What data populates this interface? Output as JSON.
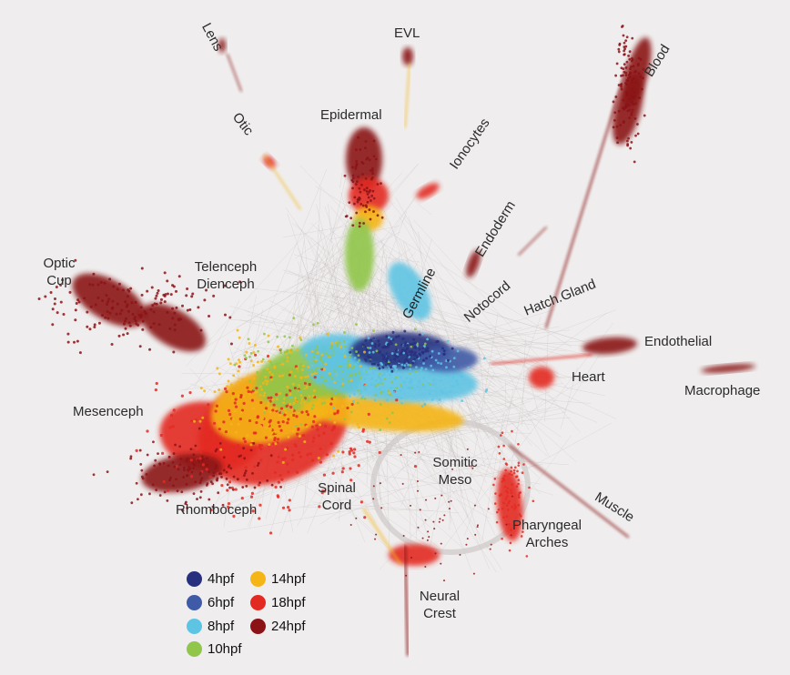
{
  "labels": {
    "lens": "Lens",
    "evl": "EVL",
    "blood": "Blood",
    "otic": "Otic",
    "epidermal": "Epidermal",
    "ionocytes": "Ionocytes",
    "endoderm": "Endoderm",
    "optic_cup_1": "Optic",
    "optic_cup_2": "Cup",
    "telenceph": "Telenceph",
    "dienceph": "Dienceph",
    "germline": "Germline",
    "notocord": "Notocord",
    "hatch_gland": "Hatch.Gland",
    "endothelial": "Endothelial",
    "heart": "Heart",
    "macrophage": "Macrophage",
    "mesenceph": "Mesenceph",
    "somitic_1": "Somitic",
    "somitic_2": "Meso",
    "spinal_1": "Spinal",
    "spinal_2": "Cord",
    "muscle": "Muscle",
    "rhomboceph": "Rhomboceph",
    "pharyngeal_1": "Pharyngeal",
    "pharyngeal_2": "Arches",
    "neural_crest_1": "Neural",
    "neural_crest_2": "Crest"
  },
  "legend": [
    {
      "label": "4hpf",
      "color": "#27307f"
    },
    {
      "label": "6hpf",
      "color": "#3f5aa6"
    },
    {
      "label": "8hpf",
      "color": "#5ec4e4"
    },
    {
      "label": "10hpf",
      "color": "#90c64a"
    },
    {
      "label": "14hpf",
      "color": "#f5b517"
    },
    {
      "label": "18hpf",
      "color": "#e32a22"
    },
    {
      "label": "24hpf",
      "color": "#8b1318"
    }
  ]
}
